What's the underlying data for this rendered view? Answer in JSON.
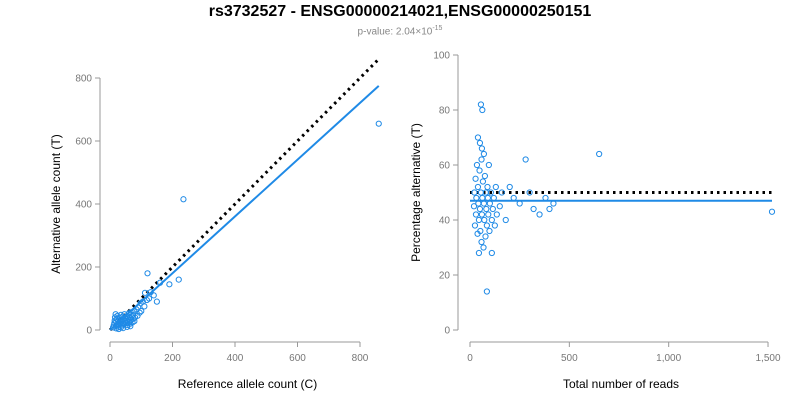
{
  "figure": {
    "title": "rs3732527 - ENSG00000214021,ENSG00000250151",
    "subtitle_prefix": "p-value: 2.04×10",
    "subtitle_exponent": "-15"
  },
  "colors": {
    "points": "#1f8ae6",
    "fit": "#1f8ae6",
    "reference": "#000000",
    "axis": "#999999"
  },
  "chart_data": [
    {
      "type": "scatter",
      "title": "",
      "xlabel": "Reference allele count (C)",
      "ylabel": "Alternative allele count (T)",
      "xlim": [
        0,
        880
      ],
      "ylim": [
        0,
        800
      ],
      "xticks": [
        0,
        200,
        400,
        600,
        800
      ],
      "xtick_labels": [
        "0",
        "200",
        "400",
        "600",
        "800"
      ],
      "yticks": [
        0,
        200,
        400,
        600,
        800
      ],
      "ytick_labels": [
        "0",
        "200",
        "400",
        "600",
        "800"
      ],
      "reference_line": {
        "x": [
          0,
          860
        ],
        "y": [
          0,
          860
        ],
        "style": "dotted"
      },
      "fit_line": {
        "x": [
          0,
          860
        ],
        "y": [
          0,
          775
        ]
      },
      "points": [
        [
          10,
          8
        ],
        [
          12,
          15
        ],
        [
          14,
          22
        ],
        [
          15,
          30
        ],
        [
          16,
          40
        ],
        [
          18,
          12
        ],
        [
          20,
          25
        ],
        [
          22,
          35
        ],
        [
          24,
          45
        ],
        [
          25,
          18
        ],
        [
          26,
          28
        ],
        [
          28,
          10
        ],
        [
          30,
          38
        ],
        [
          32,
          20
        ],
        [
          34,
          30
        ],
        [
          35,
          48
        ],
        [
          36,
          14
        ],
        [
          38,
          26
        ],
        [
          40,
          42
        ],
        [
          42,
          20
        ],
        [
          44,
          32
        ],
        [
          45,
          18
        ],
        [
          46,
          50
        ],
        [
          48,
          28
        ],
        [
          50,
          38
        ],
        [
          52,
          22
        ],
        [
          54,
          44
        ],
        [
          55,
          30
        ],
        [
          56,
          16
        ],
        [
          58,
          36
        ],
        [
          60,
          52
        ],
        [
          62,
          26
        ],
        [
          64,
          40
        ],
        [
          65,
          20
        ],
        [
          66,
          56
        ],
        [
          68,
          32
        ],
        [
          70,
          44
        ],
        [
          72,
          24
        ],
        [
          74,
          48
        ],
        [
          75,
          36
        ],
        [
          76,
          60
        ],
        [
          78,
          28
        ],
        [
          80,
          40
        ],
        [
          18,
          50
        ],
        [
          20,
          5
        ],
        [
          28,
          3
        ],
        [
          35,
          8
        ],
        [
          42,
          6
        ],
        [
          55,
          10
        ],
        [
          65,
          12
        ],
        [
          85,
          65
        ],
        [
          88,
          45
        ],
        [
          90,
          72
        ],
        [
          95,
          55
        ],
        [
          98,
          85
        ],
        [
          100,
          60
        ],
        [
          105,
          90
        ],
        [
          110,
          75
        ],
        [
          112,
          118
        ],
        [
          118,
          95
        ],
        [
          120,
          180
        ],
        [
          125,
          100
        ],
        [
          130,
          120
        ],
        [
          140,
          110
        ],
        [
          150,
          90
        ],
        [
          160,
          150
        ],
        [
          190,
          145
        ],
        [
          220,
          160
        ],
        [
          235,
          415
        ],
        [
          860,
          655
        ]
      ]
    },
    {
      "type": "scatter",
      "title": "",
      "xlabel": "Total number of reads",
      "ylabel": "Percentage alternative (T)",
      "xlim": [
        0,
        1520
      ],
      "ylim": [
        0,
        100
      ],
      "xticks": [
        0,
        500,
        1000,
        1500
      ],
      "xtick_labels": [
        "0",
        "500",
        "1,000",
        "1,500"
      ],
      "yticks": [
        0,
        20,
        40,
        60,
        80,
        100
      ],
      "ytick_labels": [
        "0",
        "20",
        "40",
        "60",
        "80",
        "100"
      ],
      "reference_line": {
        "x": [
          0,
          1520
        ],
        "y": [
          50,
          50
        ],
        "style": "dotted"
      },
      "fit_line": {
        "x": [
          0,
          1520
        ],
        "y": [
          47,
          47
        ]
      },
      "points": [
        [
          20,
          45
        ],
        [
          22,
          50
        ],
        [
          25,
          38
        ],
        [
          28,
          55
        ],
        [
          30,
          42
        ],
        [
          32,
          48
        ],
        [
          35,
          60
        ],
        [
          38,
          35
        ],
        [
          40,
          52
        ],
        [
          42,
          46
        ],
        [
          45,
          40
        ],
        [
          48,
          58
        ],
        [
          50,
          44
        ],
        [
          52,
          36
        ],
        [
          55,
          50
        ],
        [
          58,
          62
        ],
        [
          60,
          42
        ],
        [
          62,
          48
        ],
        [
          65,
          54
        ],
        [
          68,
          30
        ],
        [
          70,
          46
        ],
        [
          72,
          40
        ],
        [
          75,
          56
        ],
        [
          78,
          34
        ],
        [
          80,
          50
        ],
        [
          82,
          44
        ],
        [
          85,
          38
        ],
        [
          88,
          52
        ],
        [
          90,
          48
        ],
        [
          92,
          42
        ],
        [
          95,
          60
        ],
        [
          98,
          36
        ],
        [
          100,
          46
        ],
        [
          105,
          50
        ],
        [
          110,
          40
        ],
        [
          115,
          44
        ],
        [
          120,
          48
        ],
        [
          125,
          38
        ],
        [
          130,
          52
        ],
        [
          135,
          42
        ],
        [
          40,
          70
        ],
        [
          50,
          68
        ],
        [
          60,
          66
        ],
        [
          55,
          82
        ],
        [
          62,
          80
        ],
        [
          70,
          64
        ],
        [
          45,
          28
        ],
        [
          58,
          32
        ],
        [
          85,
          14
        ],
        [
          110,
          28
        ],
        [
          150,
          45
        ],
        [
          160,
          50
        ],
        [
          180,
          40
        ],
        [
          200,
          52
        ],
        [
          220,
          48
        ],
        [
          250,
          46
        ],
        [
          280,
          62
        ],
        [
          300,
          50
        ],
        [
          320,
          44
        ],
        [
          350,
          42
        ],
        [
          380,
          48
        ],
        [
          400,
          44
        ],
        [
          420,
          46
        ],
        [
          650,
          64
        ],
        [
          1520,
          43
        ]
      ]
    }
  ]
}
